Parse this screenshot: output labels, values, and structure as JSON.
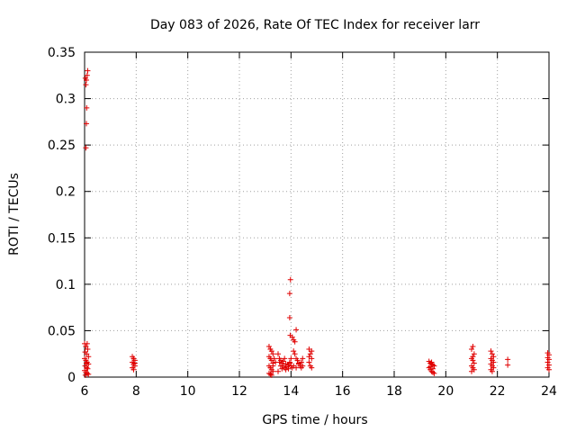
{
  "chart_data": {
    "type": "scatter",
    "title": "Day 083 of 2026, Rate Of TEC Index for receiver larr",
    "xlabel": "GPS time / hours",
    "ylabel": "ROTI / TECUs",
    "xlim": [
      6,
      24
    ],
    "ylim": [
      0,
      0.35
    ],
    "grid": true,
    "x_ticks": [
      6,
      8,
      10,
      12,
      14,
      16,
      18,
      20,
      22,
      24
    ],
    "x_tick_labels": [
      "6",
      "8",
      "10",
      "12",
      "14",
      "16",
      "18",
      "20",
      "22",
      "24"
    ],
    "y_ticks": [
      0,
      0.05,
      0.1,
      0.15,
      0.2,
      0.25,
      0.3,
      0.35
    ],
    "y_tick_labels": [
      "0",
      "0.05",
      "0.1",
      "0.15",
      "0.2",
      "0.25",
      "0.3",
      "0.35"
    ],
    "marker": "+",
    "marker_color": "#e00000",
    "series": [
      {
        "name": "ROTI",
        "points": [
          [
            6.05,
            0.247
          ],
          [
            6.07,
            0.273
          ],
          [
            6.08,
            0.29
          ],
          [
            6.05,
            0.315
          ],
          [
            6.07,
            0.32
          ],
          [
            6.1,
            0.325
          ],
          [
            6.12,
            0.33
          ],
          [
            6.03,
            0.322
          ],
          [
            6.0,
            0.036
          ],
          [
            6.1,
            0.036
          ],
          [
            6.05,
            0.033
          ],
          [
            6.12,
            0.03
          ],
          [
            6.02,
            0.027
          ],
          [
            6.08,
            0.025
          ],
          [
            6.15,
            0.022
          ],
          [
            6.0,
            0.02
          ],
          [
            6.05,
            0.018
          ],
          [
            6.1,
            0.016
          ],
          [
            6.15,
            0.014
          ],
          [
            6.02,
            0.012
          ],
          [
            6.08,
            0.01
          ],
          [
            6.12,
            0.009
          ],
          [
            6.0,
            0.007
          ],
          [
            6.05,
            0.005
          ],
          [
            6.1,
            0.004
          ],
          [
            6.15,
            0.003
          ],
          [
            6.03,
            0.002
          ],
          [
            6.07,
            0.015
          ],
          [
            7.85,
            0.022
          ],
          [
            7.9,
            0.02
          ],
          [
            7.95,
            0.018
          ],
          [
            7.85,
            0.016
          ],
          [
            7.9,
            0.014
          ],
          [
            7.95,
            0.012
          ],
          [
            7.85,
            0.01
          ],
          [
            7.9,
            0.008
          ],
          [
            7.95,
            0.015
          ],
          [
            13.15,
            0.033
          ],
          [
            13.2,
            0.03
          ],
          [
            13.25,
            0.028
          ],
          [
            13.3,
            0.025
          ],
          [
            13.15,
            0.022
          ],
          [
            13.2,
            0.02
          ],
          [
            13.25,
            0.018
          ],
          [
            13.3,
            0.015
          ],
          [
            13.15,
            0.012
          ],
          [
            13.2,
            0.01
          ],
          [
            13.25,
            0.008
          ],
          [
            13.3,
            0.006
          ],
          [
            13.15,
            0.004
          ],
          [
            13.2,
            0.003
          ],
          [
            13.25,
            0.002
          ],
          [
            13.3,
            0.012
          ],
          [
            13.35,
            0.02
          ],
          [
            13.4,
            0.016
          ],
          [
            13.5,
            0.025
          ],
          [
            13.55,
            0.02
          ],
          [
            13.6,
            0.018
          ],
          [
            13.65,
            0.015
          ],
          [
            13.7,
            0.012
          ],
          [
            13.75,
            0.01
          ],
          [
            13.8,
            0.008
          ],
          [
            13.5,
            0.006
          ],
          [
            13.55,
            0.016
          ],
          [
            13.6,
            0.012
          ],
          [
            13.65,
            0.009
          ],
          [
            13.7,
            0.017
          ],
          [
            13.75,
            0.02
          ],
          [
            13.8,
            0.014
          ],
          [
            13.85,
            0.011
          ],
          [
            13.9,
            0.013
          ],
          [
            13.95,
            0.016
          ],
          [
            14.0,
            0.012
          ],
          [
            14.05,
            0.01
          ],
          [
            13.9,
            0.009
          ],
          [
            13.95,
            0.015
          ],
          [
            14.0,
            0.02
          ],
          [
            13.95,
            0.064
          ],
          [
            13.95,
            0.09
          ],
          [
            13.98,
            0.105
          ],
          [
            13.97,
            0.045
          ],
          [
            14.05,
            0.043
          ],
          [
            14.1,
            0.04
          ],
          [
            14.15,
            0.038
          ],
          [
            14.2,
            0.051
          ],
          [
            14.1,
            0.028
          ],
          [
            14.15,
            0.025
          ],
          [
            14.2,
            0.02
          ],
          [
            14.25,
            0.018
          ],
          [
            14.3,
            0.015
          ],
          [
            14.35,
            0.012
          ],
          [
            14.4,
            0.01
          ],
          [
            14.45,
            0.02
          ],
          [
            14.1,
            0.012
          ],
          [
            14.2,
            0.01
          ],
          [
            14.3,
            0.014
          ],
          [
            14.4,
            0.016
          ],
          [
            14.45,
            0.012
          ],
          [
            14.7,
            0.03
          ],
          [
            14.75,
            0.025
          ],
          [
            14.8,
            0.02
          ],
          [
            14.7,
            0.016
          ],
          [
            14.75,
            0.012
          ],
          [
            14.8,
            0.01
          ],
          [
            14.7,
            0.022
          ],
          [
            14.8,
            0.028
          ],
          [
            19.35,
            0.017
          ],
          [
            19.4,
            0.015
          ],
          [
            19.45,
            0.014
          ],
          [
            19.5,
            0.013
          ],
          [
            19.55,
            0.012
          ],
          [
            19.35,
            0.01
          ],
          [
            19.4,
            0.008
          ],
          [
            19.45,
            0.006
          ],
          [
            19.5,
            0.005
          ],
          [
            19.55,
            0.004
          ],
          [
            19.4,
            0.011
          ],
          [
            19.5,
            0.009
          ],
          [
            19.45,
            0.016
          ],
          [
            21.0,
            0.03
          ],
          [
            21.05,
            0.033
          ],
          [
            21.1,
            0.025
          ],
          [
            21.0,
            0.02
          ],
          [
            21.05,
            0.018
          ],
          [
            21.1,
            0.015
          ],
          [
            21.0,
            0.012
          ],
          [
            21.05,
            0.01
          ],
          [
            21.1,
            0.008
          ],
          [
            21.0,
            0.006
          ],
          [
            21.05,
            0.022
          ],
          [
            21.75,
            0.028
          ],
          [
            21.8,
            0.025
          ],
          [
            21.85,
            0.022
          ],
          [
            21.75,
            0.02
          ],
          [
            21.8,
            0.018
          ],
          [
            21.85,
            0.016
          ],
          [
            21.75,
            0.014
          ],
          [
            21.8,
            0.012
          ],
          [
            21.85,
            0.01
          ],
          [
            21.75,
            0.008
          ],
          [
            21.8,
            0.006
          ],
          [
            22.4,
            0.019
          ],
          [
            22.4,
            0.013
          ],
          [
            23.95,
            0.026
          ],
          [
            24.0,
            0.024
          ],
          [
            23.95,
            0.021
          ],
          [
            24.0,
            0.019
          ],
          [
            23.95,
            0.016
          ],
          [
            24.0,
            0.013
          ],
          [
            23.95,
            0.01
          ],
          [
            24.0,
            0.008
          ]
        ]
      }
    ]
  }
}
